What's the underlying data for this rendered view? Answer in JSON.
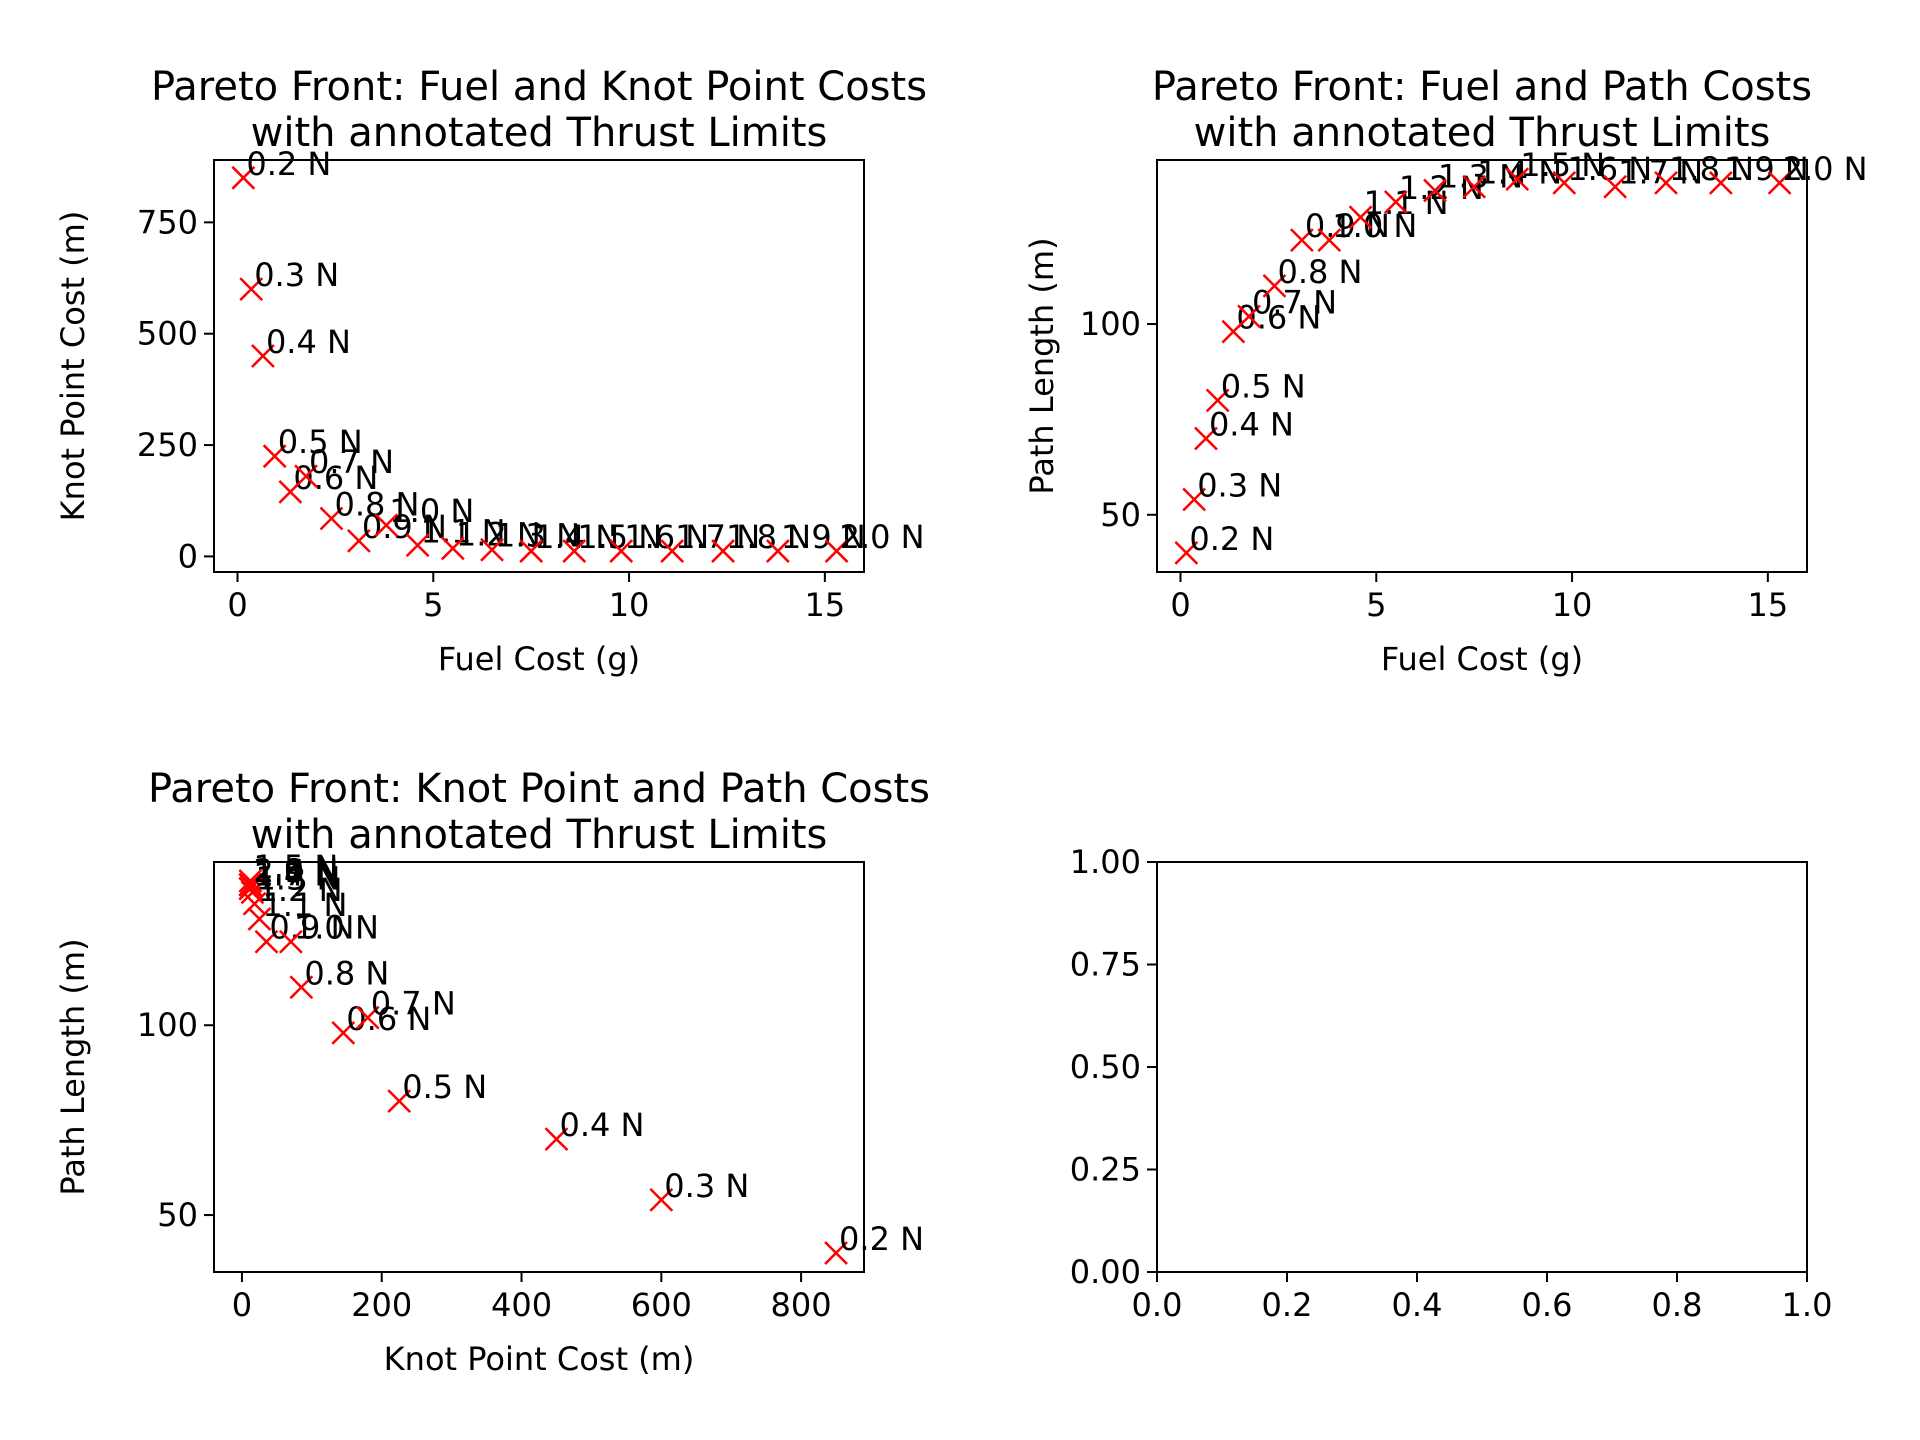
{
  "chart_data": [
    {
      "type": "scatter",
      "title_lines": [
        "Pareto Front: Fuel and Knot Point Costs",
        "with annotated Thrust Limits"
      ],
      "xlabel": "Fuel Cost (g)",
      "ylabel": "Knot Point Cost (m)",
      "xlim": [
        -0.6,
        16.0
      ],
      "ylim": [
        -35,
        890
      ],
      "xticks": [
        0,
        5,
        10,
        15
      ],
      "yticks": [
        0,
        250,
        500,
        750
      ],
      "marker": "x",
      "color": "#ff0000",
      "points": [
        {
          "label": "0.2 N",
          "x": 0.15,
          "y": 850
        },
        {
          "label": "0.3 N",
          "x": 0.35,
          "y": 600
        },
        {
          "label": "0.4 N",
          "x": 0.65,
          "y": 450
        },
        {
          "label": "0.5 N",
          "x": 0.95,
          "y": 225
        },
        {
          "label": "0.6 N",
          "x": 1.35,
          "y": 145
        },
        {
          "label": "0.7 N",
          "x": 1.75,
          "y": 180
        },
        {
          "label": "0.8 N",
          "x": 2.4,
          "y": 85
        },
        {
          "label": "0.9 N",
          "x": 3.1,
          "y": 35
        },
        {
          "label": "1.0 N",
          "x": 3.8,
          "y": 70
        },
        {
          "label": "1.1 N",
          "x": 4.6,
          "y": 25
        },
        {
          "label": "1.2 N",
          "x": 5.5,
          "y": 18
        },
        {
          "label": "1.3 N",
          "x": 6.5,
          "y": 15
        },
        {
          "label": "1.4 N",
          "x": 7.5,
          "y": 12
        },
        {
          "label": "1.5 N",
          "x": 8.6,
          "y": 12
        },
        {
          "label": "1.6 N",
          "x": 9.8,
          "y": 12
        },
        {
          "label": "1.7 N",
          "x": 11.1,
          "y": 12
        },
        {
          "label": "1.8 N",
          "x": 12.4,
          "y": 12
        },
        {
          "label": "1.9 N",
          "x": 13.8,
          "y": 12
        },
        {
          "label": "2.0 N",
          "x": 15.3,
          "y": 12
        }
      ]
    },
    {
      "type": "scatter",
      "title_lines": [
        "Pareto Front: Fuel and Path Costs",
        "with annotated Thrust Limits"
      ],
      "xlabel": "Fuel Cost (g)",
      "ylabel": "Path Length (m)",
      "xlim": [
        -0.6,
        16.0
      ],
      "ylim": [
        35,
        143
      ],
      "xticks": [
        0,
        5,
        10,
        15
      ],
      "yticks": [
        50,
        100
      ],
      "marker": "x",
      "color": "#ff0000",
      "points": [
        {
          "label": "0.2 N",
          "x": 0.15,
          "y": 40
        },
        {
          "label": "0.3 N",
          "x": 0.35,
          "y": 54
        },
        {
          "label": "0.4 N",
          "x": 0.65,
          "y": 70
        },
        {
          "label": "0.5 N",
          "x": 0.95,
          "y": 80
        },
        {
          "label": "0.6 N",
          "x": 1.35,
          "y": 98
        },
        {
          "label": "0.7 N",
          "x": 1.75,
          "y": 102
        },
        {
          "label": "0.8 N",
          "x": 2.4,
          "y": 110
        },
        {
          "label": "0.9 N",
          "x": 3.1,
          "y": 122
        },
        {
          "label": "1.0 N",
          "x": 3.8,
          "y": 122
        },
        {
          "label": "1.1 N",
          "x": 4.6,
          "y": 128
        },
        {
          "label": "1.2 N",
          "x": 5.5,
          "y": 132
        },
        {
          "label": "1.3 N",
          "x": 6.5,
          "y": 135
        },
        {
          "label": "1.4 N",
          "x": 7.5,
          "y": 136
        },
        {
          "label": "1.5 N",
          "x": 8.6,
          "y": 138
        },
        {
          "label": "1.6 N",
          "x": 9.8,
          "y": 137
        },
        {
          "label": "1.7 N",
          "x": 11.1,
          "y": 136
        },
        {
          "label": "1.8 N",
          "x": 12.4,
          "y": 137
        },
        {
          "label": "1.9 N",
          "x": 13.8,
          "y": 137
        },
        {
          "label": "2.0 N",
          "x": 15.3,
          "y": 137
        }
      ]
    },
    {
      "type": "scatter",
      "title_lines": [
        "Pareto Front: Knot Point and Path Costs",
        "with annotated Thrust Limits"
      ],
      "xlabel": "Knot Point Cost (m)",
      "ylabel": "Path Length (m)",
      "xlim": [
        -40,
        890
      ],
      "ylim": [
        35,
        143
      ],
      "xticks": [
        0,
        200,
        400,
        600,
        800
      ],
      "yticks": [
        50,
        100
      ],
      "marker": "x",
      "color": "#ff0000",
      "points": [
        {
          "label": "0.2 N",
          "x": 850,
          "y": 40
        },
        {
          "label": "0.3 N",
          "x": 600,
          "y": 54
        },
        {
          "label": "0.4 N",
          "x": 450,
          "y": 70
        },
        {
          "label": "0.5 N",
          "x": 225,
          "y": 80
        },
        {
          "label": "0.6 N",
          "x": 145,
          "y": 98
        },
        {
          "label": "0.7 N",
          "x": 180,
          "y": 102
        },
        {
          "label": "0.8 N",
          "x": 85,
          "y": 110
        },
        {
          "label": "0.9 N",
          "x": 35,
          "y": 122
        },
        {
          "label": "1.0 N",
          "x": 70,
          "y": 122
        },
        {
          "label": "1.1 N",
          "x": 25,
          "y": 128
        },
        {
          "label": "1.2 N",
          "x": 18,
          "y": 132
        },
        {
          "label": "1.3 N",
          "x": 15,
          "y": 135
        },
        {
          "label": "1.4 N",
          "x": 12,
          "y": 136
        },
        {
          "label": "1.5 N",
          "x": 12,
          "y": 138
        },
        {
          "label": "1.6 N",
          "x": 12,
          "y": 137
        },
        {
          "label": "1.7 N",
          "x": 12,
          "y": 136
        },
        {
          "label": "1.8 N",
          "x": 12,
          "y": 137
        },
        {
          "label": "1.9 N",
          "x": 12,
          "y": 137
        },
        {
          "label": "2.0 N",
          "x": 12,
          "y": 137
        }
      ]
    },
    {
      "type": "scatter",
      "title_lines": [],
      "xlabel": "",
      "ylabel": "",
      "xlim": [
        0,
        1
      ],
      "ylim": [
        0,
        1
      ],
      "xticks": [
        0.0,
        0.2,
        0.4,
        0.6,
        0.8,
        1.0
      ],
      "yticks": [
        0.0,
        0.25,
        0.5,
        0.75,
        1.0
      ],
      "xtick_labels": [
        "0.0",
        "0.2",
        "0.4",
        "0.6",
        "0.8",
        "1.0"
      ],
      "ytick_labels": [
        "0.00",
        "0.25",
        "0.50",
        "0.75",
        "1.00"
      ],
      "points": []
    }
  ]
}
